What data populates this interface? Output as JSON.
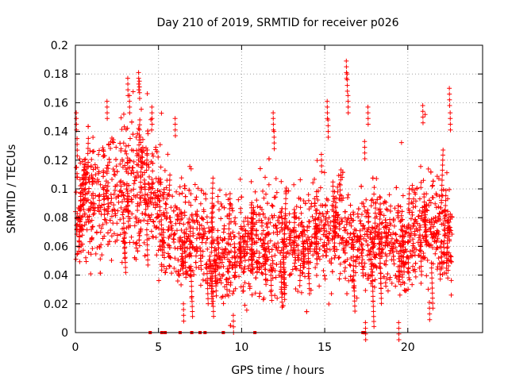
{
  "chart_data": {
    "type": "scatter",
    "title": "Day 210 of 2019, SRMTID for receiver p026",
    "xlabel": "GPS time / hours",
    "ylabel": "SRMTID / TECUs",
    "xlim": [
      0,
      24.5
    ],
    "ylim": [
      0,
      0.2
    ],
    "xticks": [
      0,
      5,
      10,
      15,
      20
    ],
    "xtick_labels": [
      "0",
      "5",
      "10",
      "15",
      "20"
    ],
    "yticks": [
      0,
      0.02,
      0.04,
      0.06,
      0.08,
      0.1,
      0.12,
      0.14,
      0.16,
      0.18,
      0.2
    ],
    "ytick_labels": [
      "0",
      "0.02",
      "0.04",
      "0.06",
      "0.08",
      "0.1",
      "0.12",
      "0.14",
      "0.16",
      "0.18",
      "0.2"
    ],
    "grid": true,
    "marker": "+",
    "series": [
      {
        "name": "SRMTID",
        "color": "#ff0000",
        "profile": [
          {
            "t": 0.0,
            "center": 0.085,
            "spread": 0.03
          },
          {
            "t": 1.0,
            "center": 0.09,
            "spread": 0.035
          },
          {
            "t": 2.0,
            "center": 0.095,
            "spread": 0.04
          },
          {
            "t": 3.0,
            "center": 0.1,
            "spread": 0.045
          },
          {
            "t": 4.0,
            "center": 0.1,
            "spread": 0.045
          },
          {
            "t": 5.0,
            "center": 0.085,
            "spread": 0.035
          },
          {
            "t": 6.0,
            "center": 0.07,
            "spread": 0.03
          },
          {
            "t": 7.0,
            "center": 0.065,
            "spread": 0.03
          },
          {
            "t": 8.0,
            "center": 0.06,
            "spread": 0.028
          },
          {
            "t": 9.0,
            "center": 0.055,
            "spread": 0.028
          },
          {
            "t": 10.0,
            "center": 0.055,
            "spread": 0.03
          },
          {
            "t": 11.0,
            "center": 0.06,
            "spread": 0.028
          },
          {
            "t": 12.0,
            "center": 0.065,
            "spread": 0.035
          },
          {
            "t": 13.0,
            "center": 0.06,
            "spread": 0.028
          },
          {
            "t": 14.0,
            "center": 0.065,
            "spread": 0.03
          },
          {
            "t": 15.0,
            "center": 0.075,
            "spread": 0.035
          },
          {
            "t": 16.0,
            "center": 0.07,
            "spread": 0.035
          },
          {
            "t": 17.0,
            "center": 0.06,
            "spread": 0.03
          },
          {
            "t": 18.0,
            "center": 0.065,
            "spread": 0.03
          },
          {
            "t": 19.0,
            "center": 0.06,
            "spread": 0.03
          },
          {
            "t": 20.0,
            "center": 0.06,
            "spread": 0.03
          },
          {
            "t": 21.0,
            "center": 0.075,
            "spread": 0.035
          },
          {
            "t": 22.0,
            "center": 0.07,
            "spread": 0.03
          },
          {
            "t": 22.7,
            "center": 0.065,
            "spread": 0.03
          }
        ],
        "spikes": [
          {
            "t": 0.05,
            "y": 0.153
          },
          {
            "t": 0.1,
            "y": 0.135
          },
          {
            "t": 1.9,
            "y": 0.161
          },
          {
            "t": 3.15,
            "y": 0.177
          },
          {
            "t": 3.25,
            "y": 0.165
          },
          {
            "t": 3.8,
            "y": 0.181
          },
          {
            "t": 3.85,
            "y": 0.175
          },
          {
            "t": 4.6,
            "y": 0.157
          },
          {
            "t": 6.0,
            "y": 0.149
          },
          {
            "t": 11.9,
            "y": 0.153
          },
          {
            "t": 11.95,
            "y": 0.14
          },
          {
            "t": 14.8,
            "y": 0.124
          },
          {
            "t": 15.15,
            "y": 0.161
          },
          {
            "t": 15.2,
            "y": 0.148
          },
          {
            "t": 16.3,
            "y": 0.189
          },
          {
            "t": 16.35,
            "y": 0.18
          },
          {
            "t": 16.4,
            "y": 0.165
          },
          {
            "t": 17.6,
            "y": 0.157
          },
          {
            "t": 17.4,
            "y": 0.133
          },
          {
            "t": 20.9,
            "y": 0.158
          },
          {
            "t": 22.5,
            "y": 0.17
          },
          {
            "t": 22.55,
            "y": 0.153
          },
          {
            "t": 19.45,
            "y": 0.007
          },
          {
            "t": 17.45,
            "y": 0.007
          },
          {
            "t": 9.5,
            "y": 0.012
          },
          {
            "t": 6.5,
            "y": 0.02
          },
          {
            "t": 21.3,
            "y": 0.021
          }
        ],
        "zero_markers": [
          4.5,
          5.2,
          5.4,
          6.3,
          7.0,
          7.5,
          7.8,
          8.9,
          10.8,
          17.3,
          17.4
        ]
      }
    ]
  }
}
